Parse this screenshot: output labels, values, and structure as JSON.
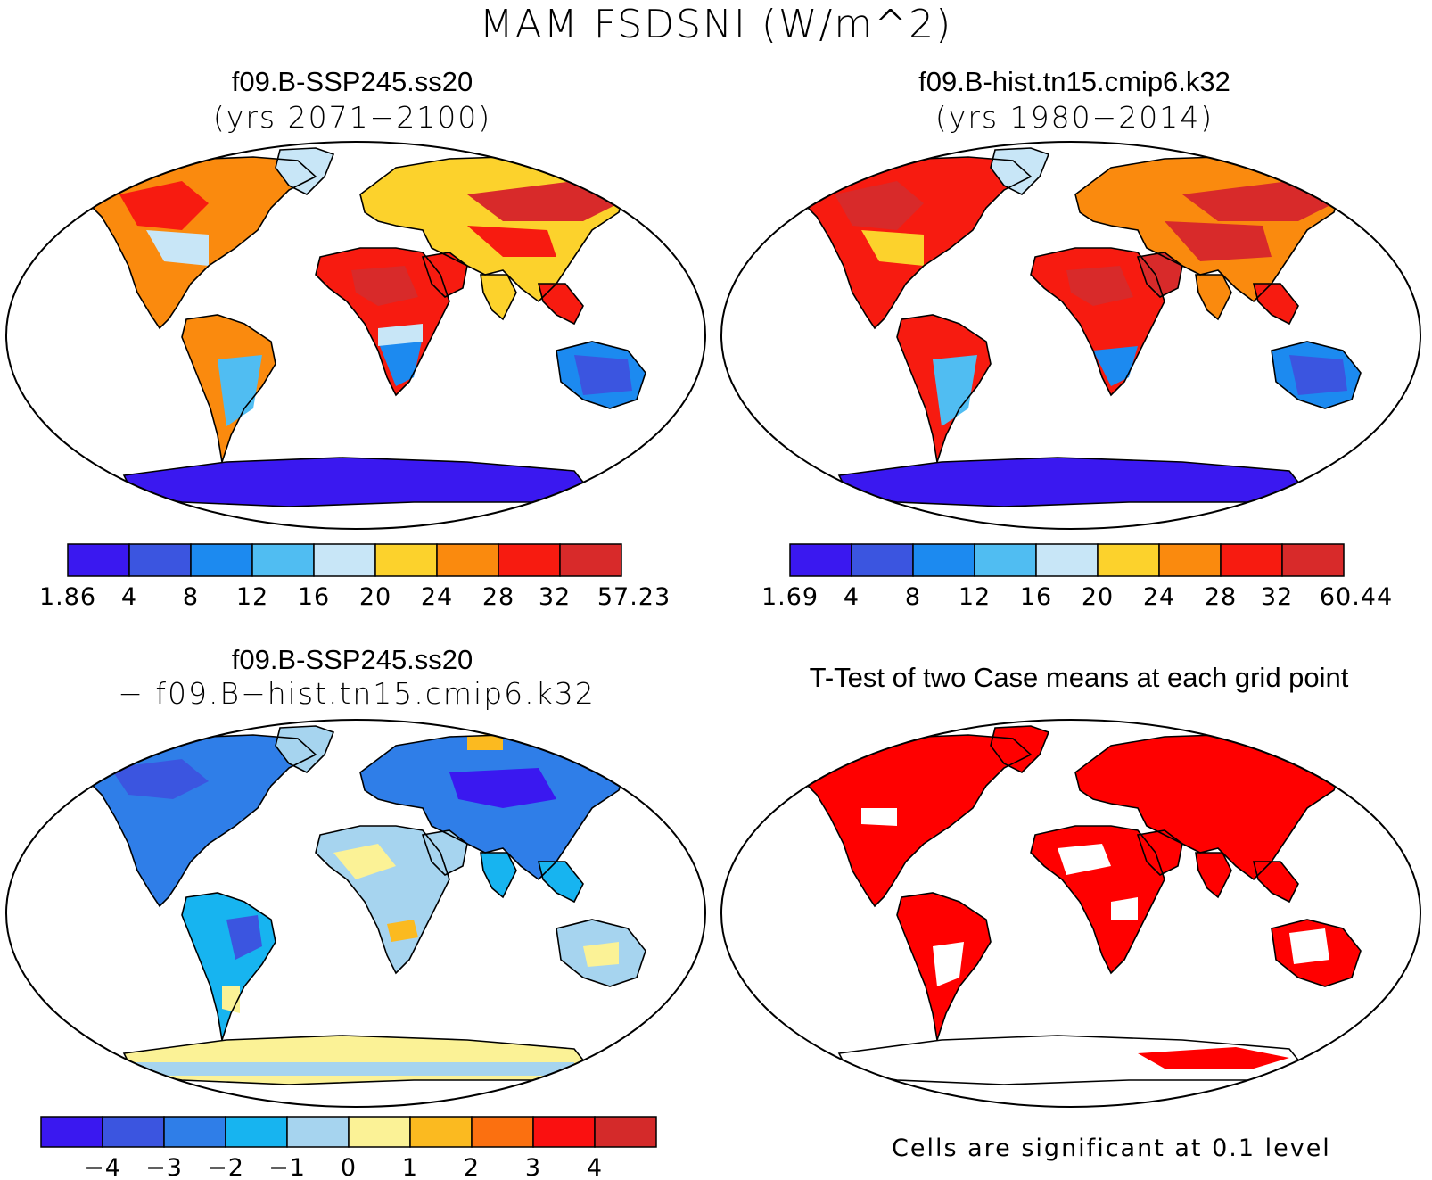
{
  "figure": {
    "title": "MAM FSDSNI (W/m^2)",
    "significance_note": "Cells are significant at 0.1 level"
  },
  "panels": [
    {
      "id": "ssp245",
      "title": "f09.B-SSP245.ss20",
      "subtitle": "(yrs 2071−2100)",
      "palette": [
        "#3a18f0",
        "#3b55e0",
        "#1c8af0",
        "#50bdf2",
        "#c8e6f7",
        "#fcd22c",
        "#fa8a0e",
        "#f71b10",
        "#d82a2a"
      ],
      "colorbar_labels": [
        "1.86",
        "4",
        "8",
        "12",
        "16",
        "20",
        "24",
        "28",
        "32",
        "57.23"
      ]
    },
    {
      "id": "hist",
      "title": "f09.B-hist.tn15.cmip6.k32",
      "subtitle": "(yrs 1980−2014)",
      "palette": [
        "#3a18f0",
        "#3b55e0",
        "#1c8af0",
        "#50bdf2",
        "#c8e6f7",
        "#fcd22c",
        "#fa8a0e",
        "#f71b10",
        "#d82a2a"
      ],
      "colorbar_labels": [
        "1.69",
        "4",
        "8",
        "12",
        "16",
        "20",
        "24",
        "28",
        "32",
        "60.44"
      ]
    },
    {
      "id": "diff",
      "title": "f09.B-SSP245.ss20",
      "subtitle": "− f09.B−hist.tn15.cmip6.k32",
      "palette": [
        "#3a18f0",
        "#3b55e0",
        "#2f7ee8",
        "#17b4f0",
        "#a6d4ef",
        "#fbf296",
        "#fbba20",
        "#fb7010",
        "#fa1010",
        "#d42a2a"
      ],
      "colorbar_labels": [
        "−4",
        "−3",
        "−2",
        "−1",
        "0",
        "1",
        "2",
        "3",
        "4"
      ]
    },
    {
      "id": "ttest",
      "title": "T-Test of two Case means at each grid point",
      "significant_color": "#ff0000"
    }
  ]
}
